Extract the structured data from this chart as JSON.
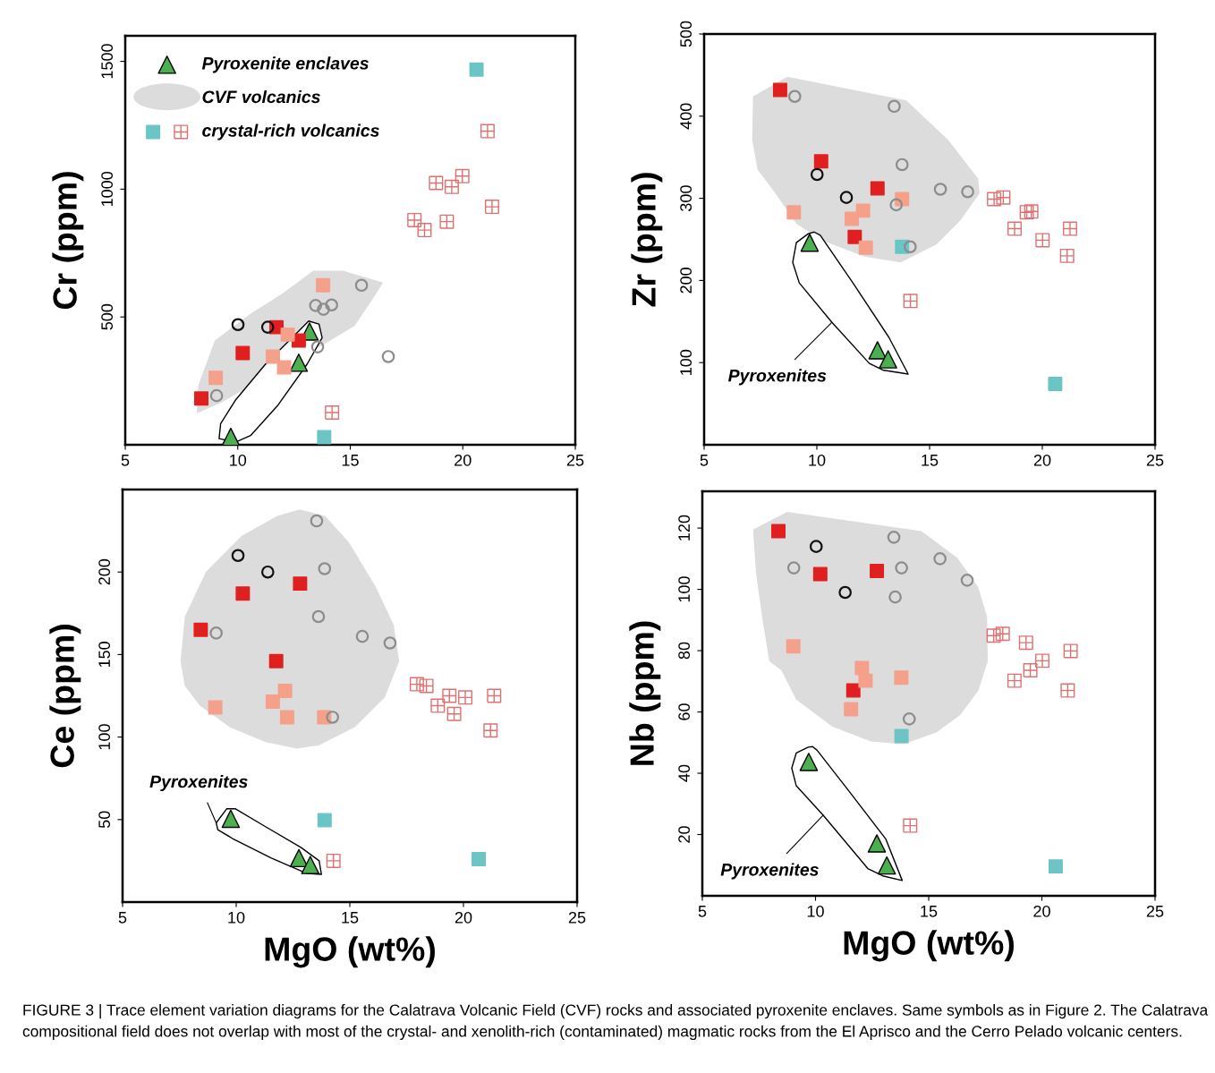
{
  "chart_data": [
    {
      "type": "scatter",
      "ylabel": "Cr (ppm)",
      "xlim": [
        5,
        25
      ],
      "xticks": [
        5,
        10,
        15,
        20,
        25
      ],
      "ylim": [
        0,
        1600
      ],
      "yticks": [
        500,
        1000,
        1500
      ],
      "legend": "top left",
      "series": [
        {
          "name": "Pyroxenite enclaves",
          "marker": "triangle",
          "color": "#4caf50",
          "x": [
            13.19,
            12.71,
            9.69
          ],
          "values": [
            443,
            321,
            31
          ]
        },
        {
          "type": "area",
          "name": "CVF volcanics",
          "color": "#dcdcdc",
          "x": [
            8.18,
            8.25,
            8.98,
            10.57,
            12.03,
            13.35,
            14.67,
            16.46,
            16.0,
            15.2,
            13.88,
            9.24
          ],
          "values": [
            123,
            234,
            408,
            513,
            594,
            681,
            681,
            635,
            571,
            466,
            396,
            164
          ]
        },
        {
          "type": "area",
          "line_style": "solid",
          "color": "#ffffff",
          "x": [
            9.17,
            9.24,
            9.9,
            11.23,
            12.55,
            13.15,
            13.61,
            13.75,
            13.08,
            11.76,
            10.57,
            9.9
          ],
          "values": [
            24,
            83,
            175,
            315,
            431,
            484,
            472,
            419,
            315,
            152,
            36,
            10
          ]
        },
        {
          "marker": "circle",
          "color": "#8c8c8c",
          "x": [
            15.5,
            13.46,
            13.81,
            14.17,
            13.55,
            16.69,
            9.06
          ],
          "values": [
            624,
            545,
            530,
            547,
            383,
            345,
            192
          ]
        },
        {
          "marker": "circle",
          "color": "#111111",
          "x": [
            10.01,
            11.33
          ],
          "values": [
            470,
            460
          ]
        },
        {
          "marker": "square",
          "color": "#e02020",
          "x": [
            11.72,
            12.71,
            10.22,
            8.38
          ],
          "values": [
            460,
            408,
            359,
            181
          ]
        },
        {
          "marker": "square",
          "color": "#f4a08a",
          "x": [
            13.79,
            12.22,
            11.56,
            12.06,
            9.02
          ],
          "values": [
            624,
            431,
            345,
            303,
            262
          ]
        },
        {
          "name": "crystal-rich volcanics",
          "marker": "cross",
          "color": "#e07070",
          "x": [
            21.1,
            19.98,
            18.81,
            19.51,
            21.3,
            17.85,
            18.3,
            19.29,
            14.19
          ],
          "values": [
            1227,
            1051,
            1024,
            1009,
            931,
            879,
            840,
            873,
            126
          ]
        },
        {
          "marker": "square",
          "color": "#6cc5c5",
          "x": [
            20.61,
            13.84
          ],
          "values": [
            1468,
            30
          ]
        }
      ]
    },
    {
      "type": "scatter",
      "ylabel": "Zr (ppm)",
      "xlim": [
        5,
        25
      ],
      "xticks": [
        5,
        10,
        15,
        20,
        25
      ],
      "ylim": [
        0,
        500
      ],
      "yticks": [
        100,
        200,
        300,
        400,
        500
      ],
      "annotations": [
        {
          "text": "Pyroxenites",
          "x": 10.67,
          "y": 149
        }
      ],
      "series": [
        {
          "marker": "triangle",
          "color": "#4caf50",
          "x": [
            9.68,
            12.69,
            13.16
          ],
          "values": [
            246,
            115,
            104
          ]
        },
        {
          "type": "area",
          "color": "#dcdcdc",
          "x": [
            7.17,
            8.69,
            13.98,
            15.83,
            17.15,
            17.22,
            16.36,
            15.31,
            13.72,
            12.13,
            10.28,
            9.09,
            8.16,
            7.37,
            7.13
          ],
          "values": [
            424,
            448,
            419,
            371,
            324,
            306,
            273,
            244,
            222,
            229,
            248,
            269,
            306,
            335,
            371
          ]
        },
        {
          "type": "area",
          "line_style": "solid",
          "color": "#ffffff",
          "x": [
            9.88,
            10.15,
            11.6,
            13.19,
            14.05,
            12.92,
            12.33,
            10.67,
            9.22,
            8.93,
            9.09,
            9.62
          ],
          "values": [
            259,
            255,
            197,
            131,
            86,
            91,
            99,
            149,
            197,
            222,
            246,
            257
          ]
        },
        {
          "marker": "circle",
          "color": "#8c8c8c",
          "x": [
            9.02,
            13.43,
            13.78,
            15.48,
            16.69,
            13.52,
            14.14
          ],
          "values": [
            424,
            412,
            341,
            311,
            308,
            292,
            241
          ]
        },
        {
          "marker": "circle",
          "color": "#111111",
          "x": [
            10.01,
            11.31
          ],
          "values": [
            329,
            301
          ]
        },
        {
          "marker": "square",
          "color": "#e02020",
          "x": [
            8.37,
            10.19,
            12.69,
            11.68
          ],
          "values": [
            432,
            345,
            312,
            253
          ]
        },
        {
          "marker": "square",
          "color": "#f4a08a",
          "x": [
            8.98,
            13.78,
            12.05,
            11.55,
            12.17
          ],
          "values": [
            283,
            299,
            285,
            275,
            240
          ]
        },
        {
          "marker": "cross",
          "color": "#e07070",
          "x": [
            17.86,
            18.27,
            19.31,
            19.51,
            18.77,
            21.23,
            20.01,
            21.1,
            14.15
          ],
          "values": [
            299,
            301,
            283,
            284,
            263,
            263,
            249,
            230,
            175
          ]
        },
        {
          "marker": "square",
          "color": "#6cc5c5",
          "x": [
            13.78,
            20.57
          ],
          "values": [
            241,
            74
          ]
        }
      ]
    },
    {
      "type": "scatter",
      "ylabel": "Ce (ppm)",
      "xlabel": "MgO (wt%)",
      "xlim": [
        5,
        25
      ],
      "xticks": [
        5,
        10,
        15,
        20,
        25
      ],
      "ylim": [
        0,
        250
      ],
      "yticks": [
        50,
        100,
        150,
        200
      ],
      "annotations": [
        {
          "text": "Pyroxenites",
          "x": 9.12,
          "y": 48
        }
      ],
      "series": [
        {
          "marker": "triangle",
          "color": "#4caf50",
          "x": [
            9.76,
            12.76,
            13.26
          ],
          "values": [
            50.5,
            26.7,
            22.5
          ]
        },
        {
          "type": "area",
          "color": "#dcdcdc",
          "x": [
            7.55,
            7.74,
            8.66,
            10.24,
            11.81,
            12.8,
            13.91,
            14.96,
            16.14,
            16.93,
            17.17,
            16.54,
            15.22,
            13.65,
            12.67,
            11.29,
            9.71,
            8.4,
            7.74
          ],
          "values": [
            146,
            173,
            200,
            222,
            234,
            238,
            234,
            218,
            191,
            168,
            146,
            124,
            106,
            95,
            93,
            97,
            106,
            119,
            131
          ]
        },
        {
          "type": "area",
          "line_style": "solid",
          "color": "#ffffff",
          "x": [
            9.12,
            9.58,
            9.97,
            11.29,
            12.86,
            13.65,
            13.75,
            13.12,
            11.55,
            9.84,
            9.19
          ],
          "values": [
            48,
            56.5,
            56.5,
            45.7,
            33,
            25,
            16.8,
            17.3,
            26.7,
            38.5,
            43.9
          ]
        },
        {
          "marker": "circle",
          "color": "#8c8c8c",
          "x": [
            13.54,
            13.89,
            13.62,
            9.12,
            15.55,
            16.77,
            14.24
          ],
          "values": [
            231,
            202,
            173,
            163,
            161,
            157,
            112
          ]
        },
        {
          "marker": "circle",
          "color": "#111111",
          "x": [
            10.08,
            11.39
          ],
          "values": [
            210,
            200
          ]
        },
        {
          "marker": "square",
          "color": "#e02020",
          "x": [
            12.81,
            10.29,
            8.44,
            11.76
          ],
          "values": [
            193,
            187,
            165,
            146
          ]
        },
        {
          "marker": "square",
          "color": "#f4a08a",
          "x": [
            12.15,
            11.61,
            9.08,
            12.24,
            13.87
          ],
          "values": [
            128,
            121.5,
            118,
            112,
            112
          ]
        },
        {
          "marker": "cross",
          "color": "#e07070",
          "x": [
            17.95,
            18.37,
            19.38,
            20.08,
            21.35,
            18.87,
            19.59,
            21.19,
            14.28
          ],
          "values": [
            132,
            131,
            125,
            124,
            125,
            119,
            114,
            104,
            25
          ]
        },
        {
          "marker": "square",
          "color": "#6cc5c5",
          "x": [
            13.89,
            20.67
          ],
          "values": [
            49.6,
            26
          ]
        }
      ]
    },
    {
      "type": "scatter",
      "ylabel": "Nb (ppm)",
      "xlabel": "MgO (wt%)",
      "xlim": [
        5,
        25
      ],
      "xticks": [
        5,
        10,
        15,
        20,
        25
      ],
      "ylim": [
        0,
        132
      ],
      "yticks": [
        20,
        40,
        60,
        80,
        100,
        120
      ],
      "annotations": [
        {
          "text": "Pyroxenites",
          "x": 10.34,
          "y": 26.3
        },
        "FIGURE 3 | Trace element variation diagrams for the Calatrava Volcanic Field (CVF) rocks and associated pyroxenite enclaves. Same symbols as in Figure 2. The Calatrava compositional field does not overlap with most of the crystal- and xenolith-rich (contaminated) magmatic rocks from the El Aprisco and the Cerro Pelado volcanic centers."
      ],
      "series": [
        {
          "marker": "triangle",
          "color": "#4caf50",
          "x": [
            9.7,
            12.71,
            13.15
          ],
          "values": [
            43.7,
            17.1,
            9.9
          ]
        },
        {
          "type": "area",
          "color": "#dcdcdc",
          "x": [
            7.24,
            8.75,
            14.68,
            16.26,
            17.19,
            17.58,
            17.61,
            17.19,
            16.4,
            15.34,
            13.89,
            12.44,
            10.73,
            9.15,
            8.49,
            7.96,
            7.64,
            7.37
          ],
          "values": [
            119.5,
            125.3,
            119,
            110.3,
            100.7,
            91,
            76.5,
            66.9,
            59.1,
            53.3,
            49.5,
            50.4,
            55.3,
            64,
            73.6,
            76.5,
            91,
            105.5
          ]
        },
        {
          "type": "area",
          "line_style": "solid",
          "color": "#ffffff",
          "x": [
            9.87,
            10.07,
            11.39,
            13.1,
            13.83,
            12.97,
            12.31,
            10.34,
            9.15,
            8.95,
            9.15,
            9.68
          ],
          "values": [
            48.7,
            47.5,
            35,
            18.6,
            5,
            6.5,
            8.9,
            26.3,
            35.9,
            41.7,
            46.6,
            48.5
          ]
        },
        {
          "marker": "circle",
          "color": "#8c8c8c",
          "x": [
            13.46,
            15.5,
            13.8,
            9.04,
            16.7,
            13.52,
            14.14
          ],
          "values": [
            117,
            110,
            107,
            107,
            103,
            97.5,
            57.7
          ]
        },
        {
          "marker": "circle",
          "color": "#111111",
          "x": [
            10.03,
            11.31
          ],
          "values": [
            114,
            99
          ]
        },
        {
          "marker": "square",
          "color": "#e02020",
          "x": [
            8.36,
            10.21,
            12.71,
            11.67
          ],
          "values": [
            119,
            105,
            106,
            67
          ]
        },
        {
          "marker": "square",
          "color": "#f4a08a",
          "x": [
            9.02,
            12.05,
            12.21,
            13.79,
            11.57
          ],
          "values": [
            81.4,
            74.3,
            70.2,
            71.2,
            60.9
          ]
        },
        {
          "marker": "cross",
          "color": "#e07070",
          "x": [
            17.87,
            18.27,
            19.3,
            21.27,
            20.02,
            19.49,
            18.79,
            21.14,
            14.18
          ],
          "values": [
            84.9,
            85.5,
            82.6,
            79.9,
            76.7,
            73.6,
            70.2,
            67,
            22.9
          ]
        },
        {
          "marker": "square",
          "color": "#6cc5c5",
          "x": [
            13.8,
            20.61
          ],
          "values": [
            52.1,
            9.6
          ]
        }
      ]
    }
  ]
}
